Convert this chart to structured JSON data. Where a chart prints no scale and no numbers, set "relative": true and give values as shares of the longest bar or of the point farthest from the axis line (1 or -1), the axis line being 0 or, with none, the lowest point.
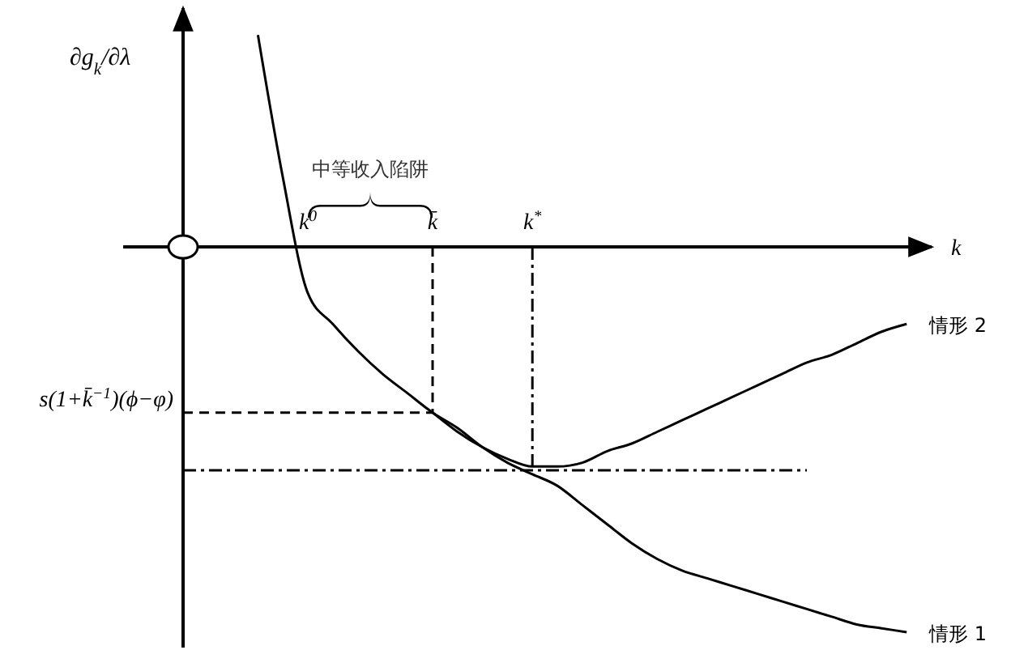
{
  "chart_data": {
    "type": "line",
    "relative": true,
    "ylabel": "∂g$_{k}$/∂λ",
    "xlabel": "k",
    "categories": [
      null,
      null,
      null,
      null,
      null,
      "k$^{0}$",
      null,
      null,
      null,
      null,
      "k̄",
      null,
      null,
      null,
      "k$^{*}$",
      null,
      null,
      null,
      null,
      null,
      null,
      null,
      null,
      null,
      null,
      null,
      null,
      null,
      null,
      null,
      null
    ],
    "annotations": [
      "中等收入陷阱"
    ],
    "ref_lines": [
      {
        "axis": "y",
        "value": -0.43,
        "label": "s(1+k̄$^{−1}$)(ϕ−φ)",
        "line_style": "dashed"
      },
      {
        "axis": "y",
        "value": -0.58,
        "label": null,
        "line_style": "dashdot"
      },
      {
        "axis": "x",
        "value": "k̄",
        "label": null,
        "line_style": "dashed"
      },
      {
        "axis": "x",
        "value": "k$^{*}$",
        "label": null,
        "line_style": "dashdot"
      }
    ],
    "series": [
      {
        "name": "情形 1",
        "color": "#000000",
        "values": [
          null,
          null,
          null,
          0.55,
          0.18,
          -0.12,
          -0.2,
          -0.27,
          -0.33,
          -0.38,
          -0.43,
          -0.47,
          -0.52,
          -0.56,
          -0.59,
          -0.62,
          -0.67,
          -0.72,
          -0.77,
          -0.81,
          -0.84,
          -0.86,
          -0.88,
          -0.9,
          -0.92,
          -0.94,
          -0.96,
          -0.98,
          -0.99,
          -1,
          null
        ]
      },
      {
        "name": "情形 2",
        "color": "#000000",
        "values": [
          null,
          null,
          null,
          null,
          null,
          null,
          null,
          null,
          null,
          null,
          -0.43,
          -0.48,
          -0.52,
          -0.55,
          -0.57,
          -0.57,
          -0.56,
          -0.53,
          -0.51,
          -0.48,
          -0.45,
          -0.42,
          -0.39,
          -0.36,
          -0.33,
          -0.3,
          -0.28,
          -0.25,
          -0.22,
          -0.2,
          null
        ]
      }
    ]
  }
}
